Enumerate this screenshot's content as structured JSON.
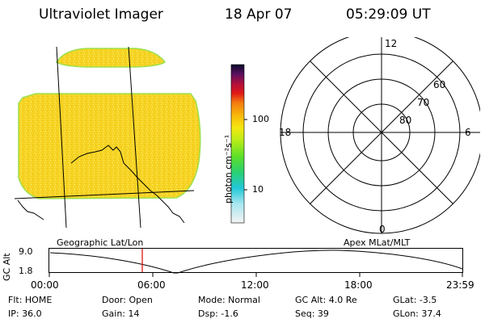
{
  "header": {
    "instrument": "Ultraviolet Imager",
    "date": "18 Apr 07",
    "time": "05:29:09 UT"
  },
  "geo_panel": {
    "label": "Geographic Lat/Lon"
  },
  "colorbar": {
    "unit_label": "photon cm⁻²s⁻¹",
    "ticks": [
      "100",
      "10"
    ]
  },
  "polar_panel": {
    "label": "Apex MLat/MLT",
    "mlt_labels": [
      "12",
      "18",
      "6",
      "0"
    ],
    "lat_labels": [
      "60",
      "70",
      "80"
    ]
  },
  "altitude_plot": {
    "ylabel": "GC Alt",
    "yticks": [
      "9.0",
      "1.8"
    ],
    "time_ticks": [
      "00:00",
      "06:00",
      "12:00",
      "18:00",
      "23:59"
    ]
  },
  "status": {
    "flt": "Flt: HOME",
    "ip": "IP: 36.0",
    "door": "Door: Open",
    "gain": "Gain: 14",
    "mode": "Mode: Normal",
    "dsp": "Dsp:  -1.6",
    "gc_alt": "GC Alt: 4.0 Re",
    "seq": "Seq: 39",
    "glat": "GLat:  -3.5",
    "glon": "GLon: 37.4"
  },
  "colors": {
    "image_fill": "#f5d21e",
    "image_edge": "#9be04a",
    "time_marker": "#e00000"
  }
}
